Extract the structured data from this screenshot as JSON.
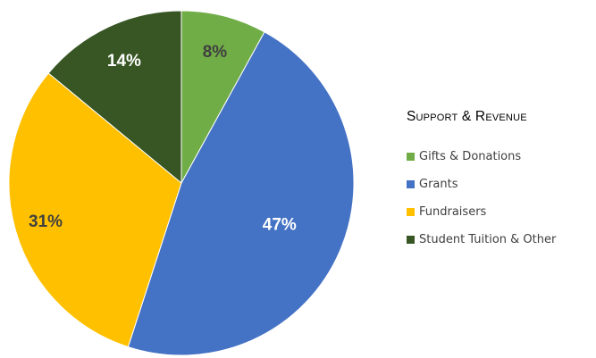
{
  "chart_data": {
    "type": "pie",
    "legend_title": "Support & Revenue",
    "legend_position": "right",
    "slices": [
      {
        "label": "Gifts & Donations",
        "value": 8,
        "display": "8%",
        "color": "#70ad47"
      },
      {
        "label": "Grants",
        "value": 47,
        "display": "47%",
        "color": "#4472c4"
      },
      {
        "label": "Fundraisers",
        "value": 31,
        "display": "31%",
        "color": "#ffc000"
      },
      {
        "label": "Student Tuition & Other",
        "value": 14,
        "display": "14%",
        "color": "#375623"
      }
    ]
  }
}
